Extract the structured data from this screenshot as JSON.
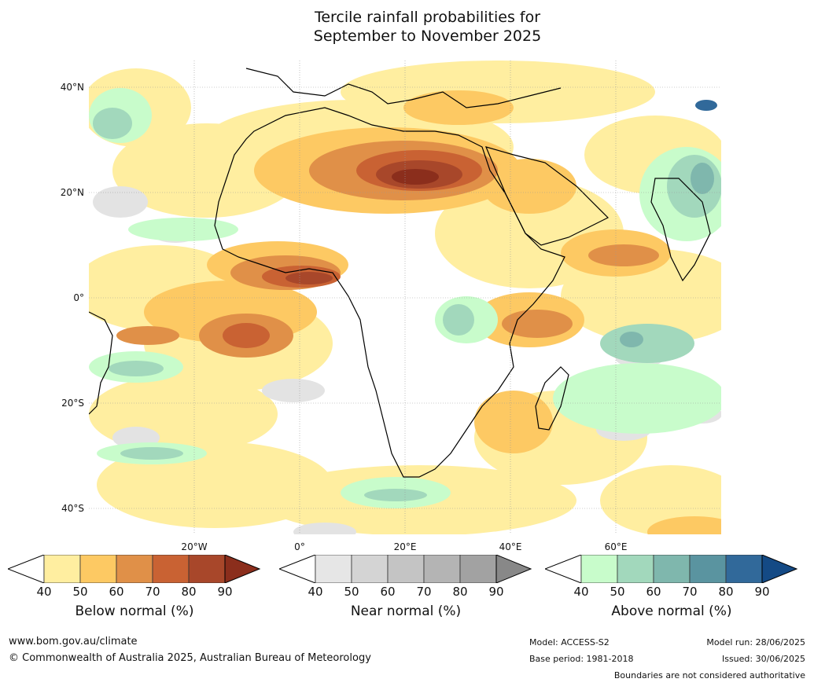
{
  "title_line1": "Tercile rainfall probabilities for",
  "title_line2": "September to November 2025",
  "lat_labels": [
    "40°N",
    "20°N",
    "0°",
    "20°S",
    "40°S"
  ],
  "lon_labels": [
    "20°W",
    "0°",
    "20°E",
    "40°E",
    "60°E"
  ],
  "legends": {
    "below": {
      "caption": "Below normal (%)",
      "ticks": [
        "40",
        "50",
        "60",
        "70",
        "80",
        "90"
      ],
      "colors": [
        "#ffeea0",
        "#fdc963",
        "#e09048",
        "#c96233",
        "#a8472a",
        "#8b2e1c"
      ]
    },
    "near": {
      "caption": "Near normal (%)",
      "ticks": [
        "40",
        "50",
        "60",
        "70",
        "80",
        "90"
      ],
      "colors": [
        "#e6e6e6",
        "#d4d4d4",
        "#c4c4c4",
        "#b4b4b4",
        "#a2a2a2",
        "#888888"
      ]
    },
    "above": {
      "caption": "Above normal (%)",
      "ticks": [
        "40",
        "50",
        "60",
        "70",
        "80",
        "90"
      ],
      "colors": [
        "#c8fccb",
        "#a2d8bc",
        "#7fb7ad",
        "#5a94a0",
        "#31699a",
        "#144a85"
      ]
    }
  },
  "footer": {
    "website": "www.bom.gov.au/climate",
    "copyright": "© Commonwealth of Australia 2025, Australian Bureau of Meteorology",
    "model": "Model: ACCESS-S2",
    "base_period": "Base period: 1981-2018",
    "model_run": "Model run: 28/06/2025",
    "issued": "Issued: 30/06/2025",
    "disclaimer": "Boundaries are not considered authoritative"
  }
}
